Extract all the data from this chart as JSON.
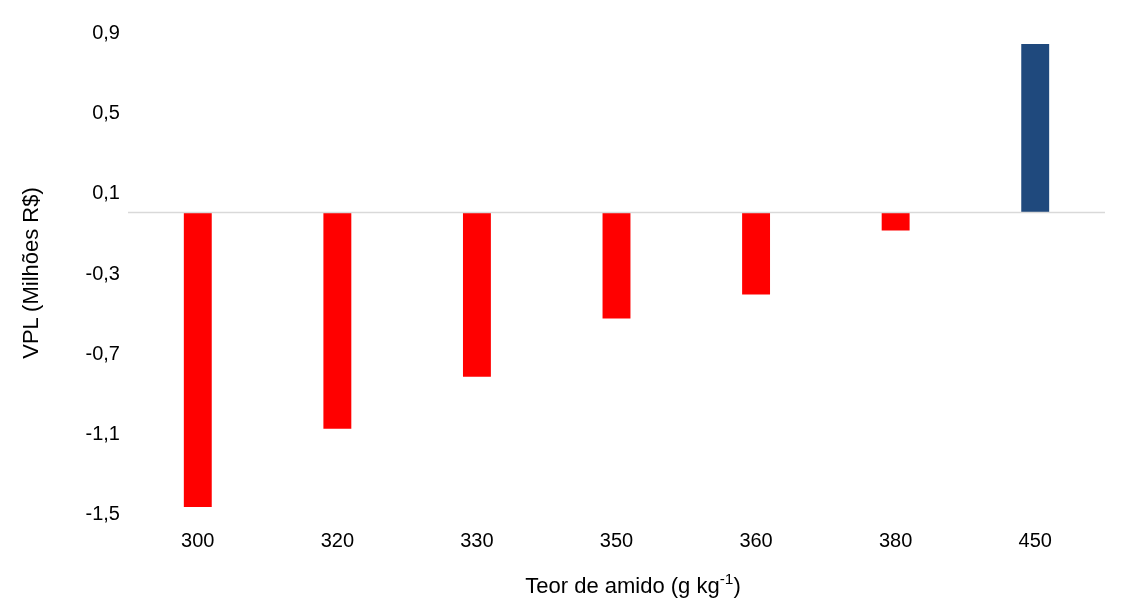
{
  "chart_data": {
    "type": "bar",
    "xlabel": "Teor de amido (g kg$^{-1}$)",
    "ylabel": "VPL (Milhões R$)",
    "categories": [
      "300",
      "320",
      "330",
      "350",
      "360",
      "380",
      "450"
    ],
    "values": [
      -1.47,
      -1.08,
      -0.82,
      -0.53,
      -0.41,
      -0.09,
      0.84
    ],
    "colors": [
      "#ff0000",
      "#ff0000",
      "#ff0000",
      "#ff0000",
      "#ff0000",
      "#ff0000",
      "#1f497d"
    ],
    "ylim": [
      -1.5,
      0.9
    ],
    "yticks": [
      {
        "value": -1.5,
        "label": "-1,5"
      },
      {
        "value": -1.1,
        "label": "-1,1"
      },
      {
        "value": -0.7,
        "label": "-0,7"
      },
      {
        "value": -0.3,
        "label": "-0,3"
      },
      {
        "value": 0.1,
        "label": "0,1"
      },
      {
        "value": 0.5,
        "label": "0,5"
      },
      {
        "value": 0.9,
        "label": "0,9"
      }
    ],
    "grid": false,
    "legend": false
  }
}
